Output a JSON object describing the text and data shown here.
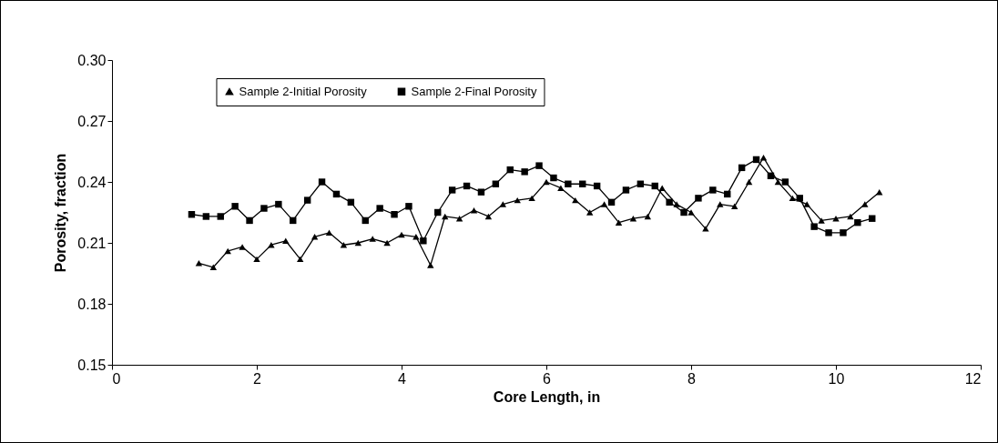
{
  "chart_data": {
    "type": "line",
    "xlabel": "Core Length, in",
    "ylabel": "Porosity, fraction",
    "xlim": [
      0,
      12
    ],
    "xticks": [
      0,
      2,
      4,
      6,
      8,
      10,
      12
    ],
    "ylim": [
      0.15,
      0.3
    ],
    "yticks": [
      0.15,
      0.18,
      0.21,
      0.24,
      0.27,
      {
        "value": 0.3,
        "label": "0.30"
      }
    ],
    "grid": false,
    "legend": "top",
    "line_style": "solid",
    "series": [
      {
        "name": "Sample 2-Initial Porosity",
        "color": "#000000",
        "marker": "triangle",
        "x": [
          1.2,
          1.4,
          1.6,
          1.8,
          2.0,
          2.2,
          2.4,
          2.6,
          2.8,
          3.0,
          3.2,
          3.4,
          3.6,
          3.8,
          4.0,
          4.2,
          4.4,
          4.6,
          4.8,
          5.0,
          5.2,
          5.4,
          5.6,
          5.8,
          6.0,
          6.2,
          6.4,
          6.6,
          6.8,
          7.0,
          7.2,
          7.4,
          7.6,
          7.8,
          8.0,
          8.2,
          8.4,
          8.6,
          8.8,
          9.0,
          9.2,
          9.4,
          9.6,
          9.8,
          10.0,
          10.2,
          10.4,
          10.6
        ],
        "values": [
          0.2,
          0.198,
          0.206,
          0.208,
          0.202,
          0.209,
          0.211,
          0.202,
          0.213,
          0.215,
          0.209,
          0.21,
          0.212,
          0.21,
          0.214,
          0.213,
          0.199,
          0.223,
          0.222,
          0.226,
          0.223,
          0.229,
          0.231,
          0.232,
          0.24,
          0.237,
          0.231,
          0.225,
          0.229,
          0.22,
          0.222,
          0.223,
          0.237,
          0.229,
          0.225,
          0.217,
          0.229,
          0.228,
          0.24,
          0.252,
          0.24,
          0.232,
          0.229,
          0.221,
          0.222,
          0.223,
          0.229,
          0.235
        ]
      },
      {
        "name": "Sample 2-Final Porosity",
        "color": "#000000",
        "marker": "square",
        "x": [
          1.1,
          1.3,
          1.5,
          1.7,
          1.9,
          2.1,
          2.3,
          2.5,
          2.7,
          2.9,
          3.1,
          3.3,
          3.5,
          3.7,
          3.9,
          4.1,
          4.3,
          4.5,
          4.7,
          4.9,
          5.1,
          5.3,
          5.5,
          5.7,
          5.9,
          6.1,
          6.3,
          6.5,
          6.7,
          6.9,
          7.1,
          7.3,
          7.5,
          7.7,
          7.9,
          8.1,
          8.3,
          8.5,
          8.7,
          8.9,
          9.1,
          9.3,
          9.5,
          9.7,
          9.9,
          10.1,
          10.3,
          10.5
        ],
        "values": [
          0.224,
          0.223,
          0.223,
          0.228,
          0.221,
          0.227,
          0.229,
          0.221,
          0.231,
          0.24,
          0.234,
          0.23,
          0.221,
          0.227,
          0.224,
          0.228,
          0.211,
          0.225,
          0.236,
          0.238,
          0.235,
          0.239,
          0.246,
          0.245,
          0.248,
          0.242,
          0.239,
          0.239,
          0.238,
          0.23,
          0.236,
          0.239,
          0.238,
          0.23,
          0.225,
          0.232,
          0.236,
          0.234,
          0.247,
          0.251,
          0.243,
          0.24,
          0.232,
          0.218,
          0.215,
          0.215,
          0.22,
          0.222
        ]
      }
    ]
  }
}
